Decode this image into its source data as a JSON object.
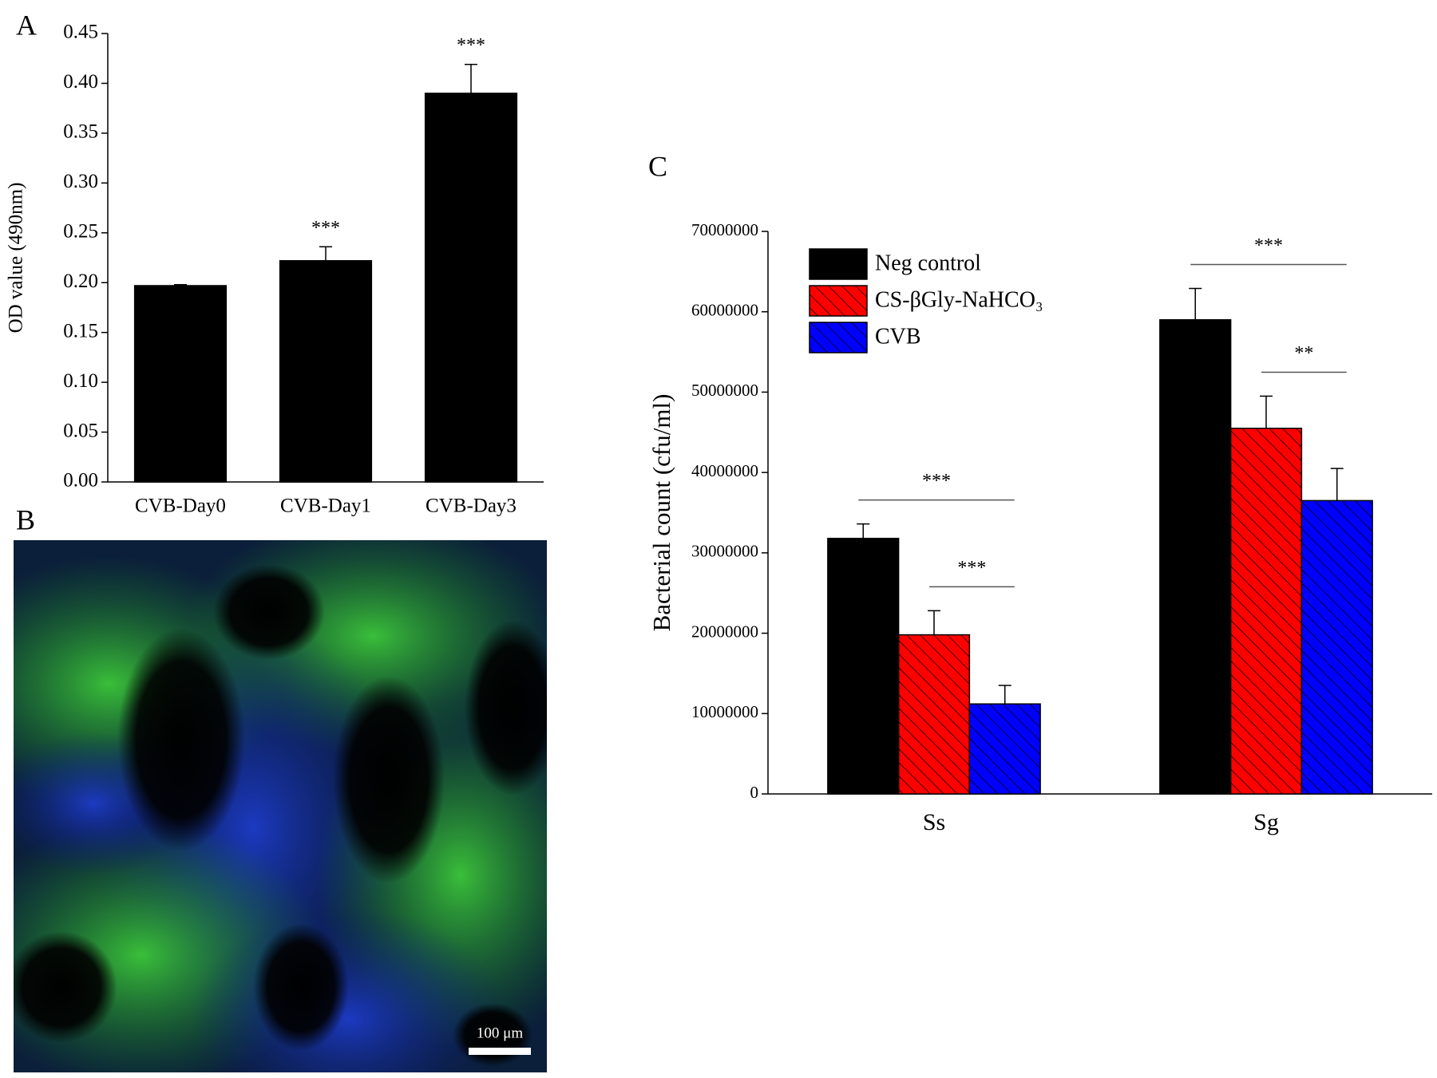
{
  "chart_data": [
    {
      "type": "bar",
      "panel": "A",
      "y_label": "OD value (490nm)",
      "categories": [
        "CVB-Day0",
        "CVB-Day1",
        "CVB-Day3"
      ],
      "values": [
        0.197,
        0.222,
        0.39
      ],
      "errors": [
        0.001,
        0.014,
        0.029
      ],
      "color": "#000000",
      "ylim": [
        0,
        0.45
      ],
      "yticks": [
        {
          "value": 0,
          "label": "0.00"
        },
        {
          "value": 0.05,
          "label": "0.05"
        },
        {
          "value": 0.1,
          "label": "0.10"
        },
        {
          "value": 0.15,
          "label": "0.15"
        },
        {
          "value": 0.2,
          "label": "0.20"
        },
        {
          "value": 0.25,
          "label": "0.25"
        },
        {
          "value": 0.3,
          "label": "0.30"
        },
        {
          "value": 0.35,
          "label": "0.35"
        },
        {
          "value": 0.4,
          "label": "0.40"
        },
        {
          "value": 0.45,
          "label": "0.45"
        }
      ],
      "annotations": [
        {
          "text": "***",
          "category": "CVB-Day1"
        },
        {
          "text": "***",
          "category": "CVB-Day3"
        }
      ]
    },
    {
      "type": "bar",
      "panel": "C",
      "y_label": "Bacterial count (cfu/ml)",
      "categories": [
        "Ss",
        "Sg"
      ],
      "series": [
        {
          "name": "Neg control",
          "color": "#000000",
          "hatch": false,
          "values": [
            31800000,
            59000000
          ],
          "errors": [
            1800000,
            3900000
          ]
        },
        {
          "name": "CS-βGly-NaHCO₃",
          "color": "#ff0000",
          "hatch": true,
          "values": [
            19800000,
            45500000
          ],
          "errors": [
            3000000,
            4000000
          ]
        },
        {
          "name": "CVB",
          "color": "#0000ff",
          "hatch": true,
          "values": [
            11200000,
            36500000
          ],
          "errors": [
            2300000,
            4000000
          ]
        }
      ],
      "ylim": [
        0,
        70000000
      ],
      "yticks": [
        0,
        10000000,
        20000000,
        30000000,
        40000000,
        50000000,
        60000000,
        70000000
      ],
      "legend": "upper left",
      "annotations": [
        {
          "text": "***",
          "category": "Ss",
          "from": "CS-βGly-NaHCO₃",
          "to": "CVB"
        },
        {
          "text": "***",
          "category": "Ss",
          "from": "Neg control",
          "to": "CVB"
        },
        {
          "text": "**",
          "category": "Sg",
          "from": "CS-βGly-NaHCO₃",
          "to": "CVB"
        },
        {
          "text": "***",
          "category": "Sg",
          "from": "Neg control",
          "to": "CVB"
        }
      ]
    }
  ],
  "image": {
    "label": "B",
    "scale_bar": "100 μm"
  }
}
